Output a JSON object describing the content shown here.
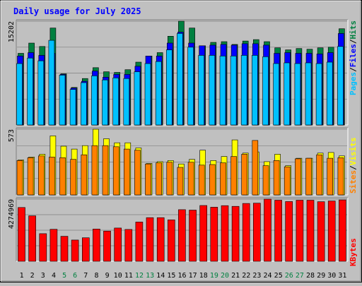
{
  "title": "Daily usage for July 2025",
  "colors": {
    "background": "#c0c0c0",
    "hits": "#008040",
    "files": "#0000ff",
    "pages": "#00c0ff",
    "visits": "#ffff00",
    "sites": "#ff8000",
    "kbytes": "#ff0000",
    "weekend_label": "#008040",
    "weekday_label": "#000000",
    "title": "#0000ff"
  },
  "chart_data": [
    {
      "type": "bar",
      "panel": "hits-files-pages",
      "ymax_label": "15202",
      "ylim": [
        0,
        15202
      ],
      "categories": [
        "1",
        "2",
        "3",
        "4",
        "5",
        "6",
        "7",
        "8",
        "9",
        "10",
        "11",
        "12",
        "13",
        "14",
        "15",
        "16",
        "17",
        "18",
        "19",
        "20",
        "21",
        "22",
        "23",
        "24",
        "25",
        "26",
        "27",
        "28",
        "29",
        "30",
        "31"
      ],
      "series": [
        {
          "name": "Hits",
          "values": [
            10500,
            12000,
            11500,
            14200,
            7500,
            5500,
            6800,
            8400,
            7800,
            7700,
            8100,
            9200,
            10100,
            10600,
            13000,
            15202,
            14200,
            11600,
            12100,
            12200,
            11800,
            12300,
            12500,
            12200,
            11300,
            11000,
            11200,
            11100,
            11300,
            11400,
            14100
          ]
        },
        {
          "name": "Files",
          "values": [
            10100,
            10600,
            10200,
            10500,
            7400,
            5400,
            6400,
            7900,
            7000,
            7400,
            7400,
            8600,
            10100,
            10100,
            12000,
            13600,
            12000,
            11600,
            11700,
            11800,
            11700,
            11900,
            11900,
            11700,
            10500,
            10600,
            10500,
            10500,
            10400,
            10600,
            13400
          ]
        },
        {
          "name": "Pages",
          "values": [
            9000,
            9800,
            9400,
            12400,
            7300,
            5200,
            6200,
            7200,
            6600,
            6900,
            6800,
            7800,
            9000,
            9300,
            11000,
            13400,
            11400,
            10200,
            10200,
            10100,
            10100,
            10200,
            10200,
            10000,
            9000,
            9100,
            9000,
            9100,
            9000,
            9200,
            11500
          ]
        }
      ]
    },
    {
      "type": "bar",
      "panel": "visits-sites",
      "ymax_label": "573",
      "ylim": [
        0,
        573
      ],
      "categories": [
        "1",
        "2",
        "3",
        "4",
        "5",
        "6",
        "7",
        "8",
        "9",
        "10",
        "11",
        "12",
        "13",
        "14",
        "15",
        "16",
        "17",
        "18",
        "19",
        "20",
        "21",
        "22",
        "23",
        "24",
        "25",
        "26",
        "27",
        "28",
        "29",
        "30",
        "31"
      ],
      "series": [
        {
          "name": "Visits",
          "values": [
            305,
            330,
            355,
            515,
            425,
            400,
            430,
            573,
            490,
            455,
            455,
            410,
            275,
            290,
            300,
            270,
            310,
            390,
            300,
            335,
            480,
            365,
            375,
            290,
            355,
            255,
            320,
            320,
            365,
            370,
            340
          ]
        },
        {
          "name": "Sites",
          "values": [
            300,
            325,
            340,
            330,
            325,
            310,
            350,
            430,
            430,
            420,
            400,
            390,
            270,
            280,
            285,
            240,
            285,
            260,
            265,
            280,
            335,
            355,
            475,
            255,
            300,
            245,
            315,
            320,
            350,
            320,
            325
          ]
        }
      ]
    },
    {
      "type": "bar",
      "panel": "kbytes",
      "ymax_label": "4274969",
      "ylim": [
        0,
        4274969
      ],
      "categories": [
        "1",
        "2",
        "3",
        "4",
        "5",
        "6",
        "7",
        "8",
        "9",
        "10",
        "11",
        "12",
        "13",
        "14",
        "15",
        "16",
        "17",
        "18",
        "19",
        "20",
        "21",
        "22",
        "23",
        "24",
        "25",
        "26",
        "27",
        "28",
        "29",
        "30",
        "31"
      ],
      "series": [
        {
          "name": "KBytes",
          "values": [
            3700000,
            3130000,
            1900000,
            2200000,
            1720000,
            1460000,
            1620000,
            2220000,
            2080000,
            2290000,
            2190000,
            2700000,
            3000000,
            3000000,
            2850000,
            3550000,
            3520000,
            3840000,
            3720000,
            3830000,
            3780000,
            3980000,
            4000000,
            4274969,
            4200000,
            4110000,
            4200000,
            4200000,
            4100000,
            4150000,
            4220000
          ]
        }
      ]
    }
  ],
  "side_labels": {
    "pages": "Pages",
    "files": "Files",
    "hits": "Hits",
    "sep": "/",
    "visits": "Visits",
    "sites": "Sites",
    "kbytes": "KBytes"
  },
  "weekend_days": [
    "5",
    "6",
    "12",
    "13",
    "19",
    "20",
    "26",
    "27"
  ]
}
